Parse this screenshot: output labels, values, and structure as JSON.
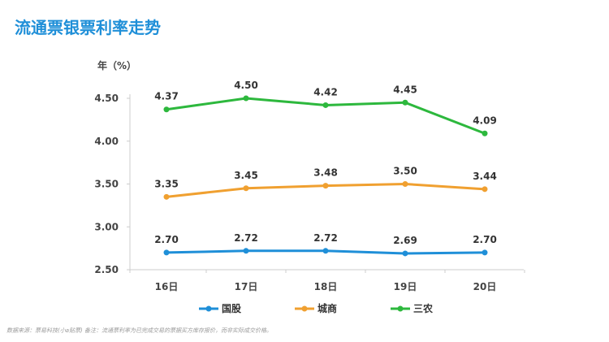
{
  "title": "流通票银票利率走势",
  "footnote": "数据来源：票易科技(小a贴票) 备注：流通票利率为已完成交易的票据买方库存报价，而非实际成交价格。",
  "chart_data": {
    "type": "line",
    "title": "流通票银票利率走势",
    "ylabel": "年（%）",
    "xlabel": "",
    "categories": [
      "16日",
      "17日",
      "18日",
      "19日",
      "20日"
    ],
    "ylim": [
      2.5,
      4.5
    ],
    "yticks": [
      "2.50",
      "3.00",
      "3.50",
      "4.00",
      "4.50"
    ],
    "legend_position": "bottom",
    "grid": false,
    "series": [
      {
        "name": "国股",
        "color": "#1f8fd8",
        "values": [
          2.7,
          2.72,
          2.72,
          2.69,
          2.7
        ],
        "labels": [
          "2.70",
          "2.72",
          "2.72",
          "2.69",
          "2.70"
        ]
      },
      {
        "name": "城商",
        "color": "#f0a030",
        "values": [
          3.35,
          3.45,
          3.48,
          3.5,
          3.44
        ],
        "labels": [
          "3.35",
          "3.45",
          "3.48",
          "3.50",
          "3.44"
        ]
      },
      {
        "name": "三农",
        "color": "#2db83d",
        "values": [
          4.37,
          4.5,
          4.42,
          4.45,
          4.09
        ],
        "labels": [
          "4.37",
          "4.50",
          "4.42",
          "4.45",
          "4.09"
        ]
      }
    ]
  }
}
